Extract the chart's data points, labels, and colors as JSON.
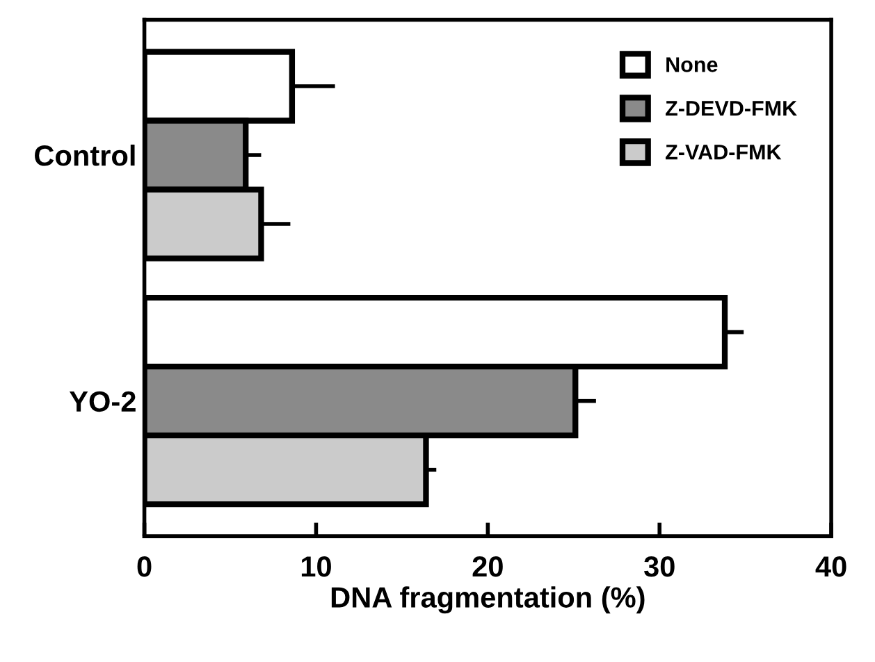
{
  "chart_data": {
    "type": "bar",
    "orientation": "horizontal",
    "xlabel": "DNA fragmentation (%)",
    "categories": [
      "Control",
      "YO-2"
    ],
    "series": [
      {
        "name": "None",
        "color": "#ffffff",
        "values": [
          8.6,
          33.8
        ],
        "errors": [
          [
            8.6,
            11.1
          ],
          [
            33.8,
            34.9
          ]
        ]
      },
      {
        "name": "Z-DEVD-FMK",
        "color": "#8a8a8a",
        "values": [
          5.9,
          25.1
        ],
        "errors": [
          [
            5.9,
            6.8
          ],
          [
            25.1,
            26.3
          ]
        ]
      },
      {
        "name": "Z-VAD-FMK",
        "color": "#cbcbcb",
        "values": [
          6.8,
          16.4
        ],
        "errors": [
          [
            6.8,
            8.5
          ],
          [
            16.4,
            17.0
          ]
        ]
      }
    ],
    "xlim": [
      0,
      40
    ],
    "xticks": [
      0,
      10,
      20,
      30,
      40
    ],
    "grid": false,
    "legend": "top right"
  }
}
